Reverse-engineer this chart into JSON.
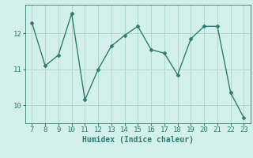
{
  "x": [
    7,
    8,
    9,
    10,
    11,
    12,
    13,
    14,
    15,
    16,
    17,
    18,
    19,
    20,
    21,
    22,
    23
  ],
  "y": [
    12.3,
    11.1,
    11.4,
    12.55,
    10.15,
    11.0,
    11.65,
    11.95,
    12.2,
    11.55,
    11.45,
    10.85,
    11.85,
    12.2,
    12.2,
    10.35,
    9.65
  ],
  "line_color": "#2e7d72",
  "marker": "D",
  "marker_size": 2.5,
  "bg_color": "#d4f0ec",
  "grid_color": "#b0d8d0",
  "xlabel": "Humidex (Indice chaleur)",
  "xlim": [
    6.5,
    23.5
  ],
  "ylim": [
    9.5,
    12.8
  ],
  "yticks": [
    10,
    11,
    12
  ],
  "xticks": [
    7,
    8,
    9,
    10,
    11,
    12,
    13,
    14,
    15,
    16,
    17,
    18,
    19,
    20,
    21,
    22,
    23
  ],
  "xlabel_fontsize": 7,
  "tick_fontsize": 6.5,
  "linewidth": 1.0
}
